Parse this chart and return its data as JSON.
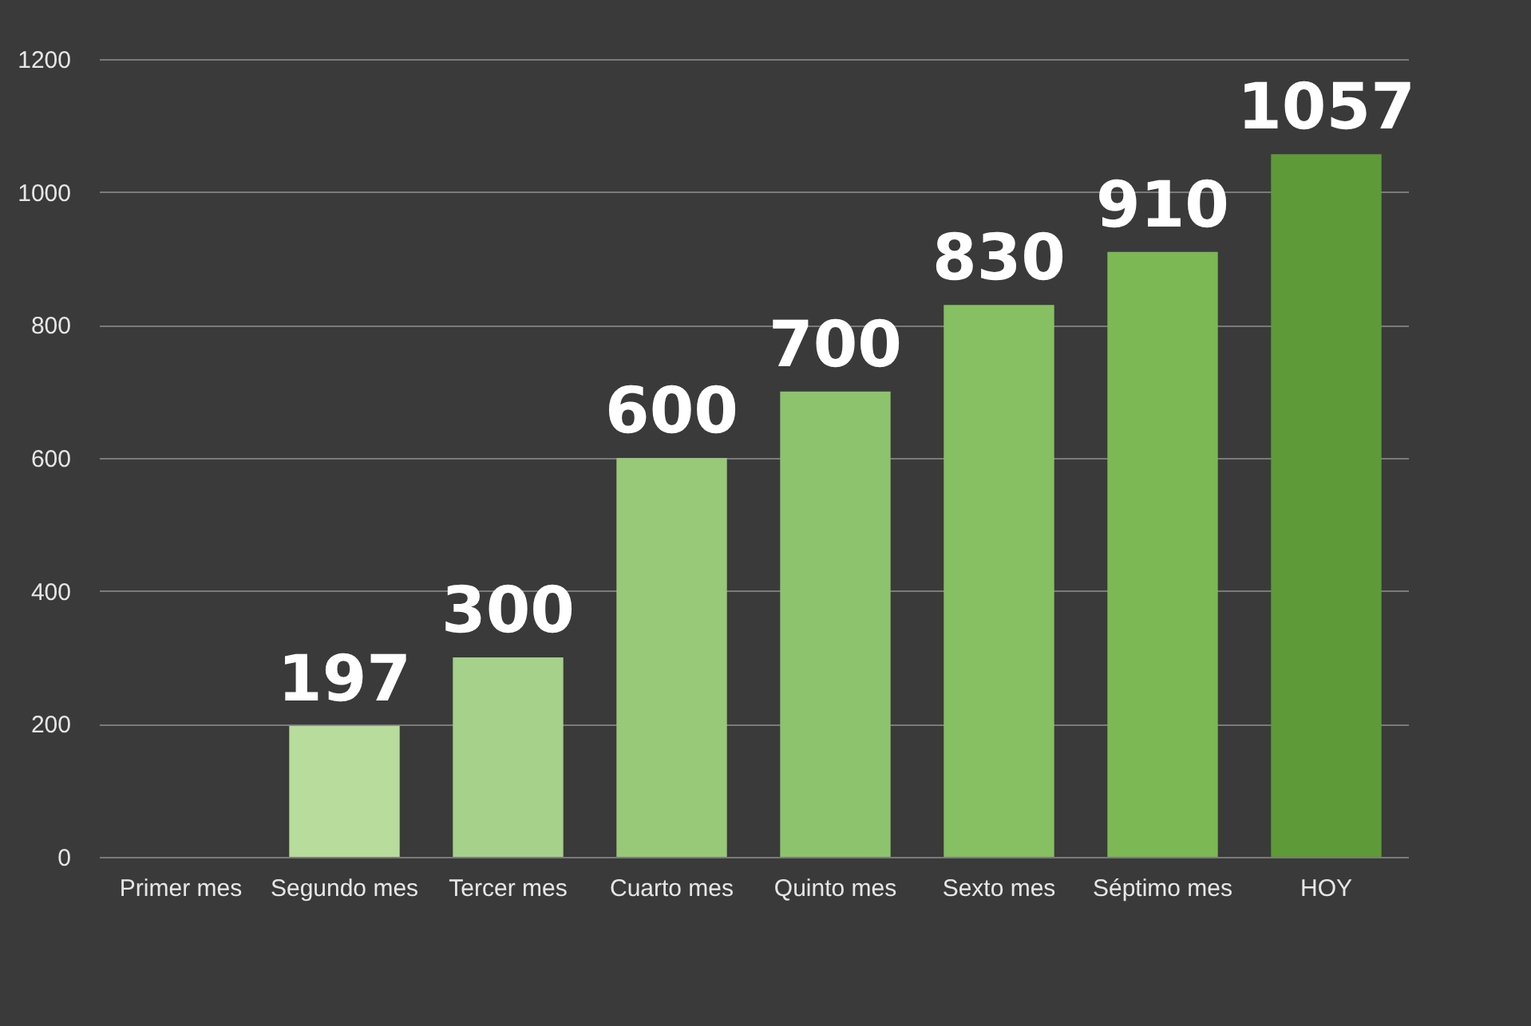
{
  "chart_data": {
    "type": "bar",
    "categories": [
      "Primer mes",
      "Segundo mes",
      "Tercer mes",
      "Cuarto mes",
      "Quinto mes",
      "Sexto mes",
      "Séptimo mes",
      "HOY"
    ],
    "values": [
      0,
      197,
      300,
      600,
      700,
      830,
      910,
      1057
    ],
    "value_labels": [
      null,
      "197",
      "300",
      "600",
      "700",
      "830",
      "910",
      "1057"
    ],
    "colors": [
      "#2b3328",
      "#b8dc9c",
      "#a6d18a",
      "#98c979",
      "#8dc36d",
      "#86c063",
      "#7cb854",
      "#5e9a38"
    ],
    "ylim": [
      0,
      1200
    ],
    "yticks": [
      0,
      200,
      400,
      600,
      800,
      1000,
      1200
    ],
    "grid": "y"
  }
}
